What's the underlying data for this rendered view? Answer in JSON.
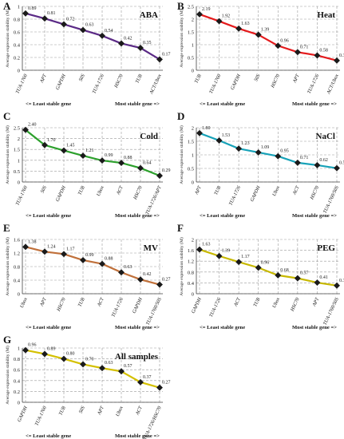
{
  "figure": {
    "common": {
      "ylabel": "Average expression stability (M)",
      "least_label": "<= Least stable gene",
      "most_label": "Most stable gene =>"
    },
    "colors": {
      "A": "#5b2a86",
      "B": "#e41a1c",
      "C": "#2ca02c",
      "D": "#17a2b8",
      "E": "#c0703a",
      "F": "#c7b800",
      "G": "#d4c000",
      "marker": "#1a1a1a",
      "grid": "#9a9a9a"
    }
  },
  "chart_data": [
    {
      "panel": "A",
      "title": "ABA",
      "type": "line",
      "categories": [
        "TUA-1760",
        "APT",
        "GAPDH",
        "50S",
        "TUA-1726",
        "HSC70",
        "TUB",
        "ACT/Ubox"
      ],
      "values": [
        0.89,
        0.81,
        0.72,
        0.63,
        0.54,
        0.42,
        0.35,
        0.17
      ],
      "ylim": [
        0,
        1
      ],
      "yticks": [
        "0",
        "0.2",
        "0.4",
        "0.6",
        "0.8",
        "1"
      ],
      "labels": [
        "0.89",
        "0.81",
        "0.72",
        "0.63",
        "0.54",
        "0.42",
        "0.35",
        "0.17"
      ]
    },
    {
      "panel": "B",
      "title": "Heat",
      "type": "line",
      "categories": [
        "TUB",
        "TUA-1760",
        "GAPDH",
        "50S",
        "HSC70",
        "APT",
        "TUA-1726",
        "ACT/Ubox"
      ],
      "values": [
        2.19,
        1.92,
        1.63,
        1.39,
        0.96,
        0.71,
        0.58,
        0.38
      ],
      "ylim": [
        0,
        2.5
      ],
      "yticks": [
        "0",
        "0.5",
        "1",
        "1.5",
        "2",
        "2.5"
      ],
      "labels": [
        "2.19",
        "1.92",
        "1.63",
        "1.39",
        "0.96",
        "0.71",
        "0.58",
        "0.38"
      ]
    },
    {
      "panel": "C",
      "title": "Cold",
      "type": "line",
      "categories": [
        "TUA-1760",
        "50S",
        "GAPDH",
        "TUB",
        "Ubox",
        "ACT",
        "HSC70",
        "TUA-1726/APT"
      ],
      "values": [
        2.4,
        1.7,
        1.45,
        1.21,
        0.99,
        0.88,
        0.64,
        0.29
      ],
      "ylim": [
        0,
        2.5
      ],
      "yticks": [
        "0",
        "0.5",
        "1",
        "1.5",
        "2",
        "2.5"
      ],
      "labels": [
        "2.40",
        "1.70",
        "1.45",
        "1.21",
        "0.99",
        "0.88",
        "0.64",
        "0.29"
      ]
    },
    {
      "panel": "D",
      "title": "NaCl",
      "type": "line",
      "categories": [
        "APT",
        "TUB",
        "TUA-1726",
        "GAPDH",
        "Ubox",
        "ACT",
        "HSC70",
        "TUA-1760/50S"
      ],
      "values": [
        1.8,
        1.53,
        1.23,
        1.09,
        0.95,
        0.71,
        0.62,
        0.51
      ],
      "ylim": [
        0,
        2
      ],
      "yticks": [
        "0",
        "0.5",
        "1",
        "1.5",
        "2"
      ],
      "labels": [
        "1.80",
        "1.53",
        "1.23",
        "1.09",
        "0.95",
        "0.71",
        "0.62",
        "0.51"
      ]
    },
    {
      "panel": "E",
      "title": "MV",
      "type": "line",
      "categories": [
        "Ubox",
        "APT",
        "HSC70",
        "TUB",
        "ACT",
        "TUA-1726",
        "GAPDH",
        "TUA-1760/50S"
      ],
      "values": [
        1.38,
        1.24,
        1.17,
        0.99,
        0.88,
        0.63,
        0.42,
        0.27
      ],
      "ylim": [
        0,
        1.6
      ],
      "yticks": [
        "0",
        "0.4",
        "0.8",
        "1.2",
        "1.6"
      ],
      "labels": [
        "1.38",
        "1.24",
        "1.17",
        "0.99",
        "0.88",
        "0.63",
        "0.42",
        "0.27"
      ]
    },
    {
      "panel": "F",
      "title": "PEG",
      "type": "line",
      "categories": [
        "GAPDH",
        "TUA-1726",
        "ACT",
        "TUB",
        "Ubox",
        "HSC70",
        "APT",
        "TUA-1760/50S"
      ],
      "values": [
        1.63,
        1.39,
        1.17,
        0.96,
        0.68,
        0.57,
        0.41,
        0.3
      ],
      "ylim": [
        0,
        2
      ],
      "yticks": [
        "0",
        "0.4",
        "0.8",
        "1.2",
        "1.6",
        "2"
      ],
      "labels": [
        "1.63",
        "1.39",
        "1.17",
        "0.96",
        "0.68",
        "0.57",
        "0.41",
        "0.30"
      ]
    },
    {
      "panel": "G",
      "title": "All samples",
      "type": "line",
      "categories": [
        "GAPDH",
        "TUA-1760",
        "TUB",
        "50S",
        "APT",
        "Ubox",
        "ACT",
        "TUA-1726/HSC70"
      ],
      "values": [
        0.96,
        0.89,
        0.8,
        0.7,
        0.63,
        0.57,
        0.37,
        0.27
      ],
      "ylim": [
        0,
        1
      ],
      "yticks": [
        "0",
        "0.2",
        "0.4",
        "0.6",
        "0.8",
        "1"
      ],
      "labels": [
        "0.96",
        "0.89",
        "0.80",
        "0.70",
        "0.63",
        "0.57",
        "0.37",
        "0.27"
      ]
    }
  ]
}
